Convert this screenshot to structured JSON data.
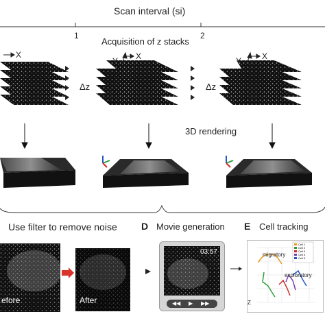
{
  "timeline": {
    "title": "Scan interval (si)",
    "tick1": "1",
    "tick2": "2"
  },
  "stacks": {
    "title": "Acquisition of z stacks",
    "axis_x": "X",
    "axis_y": "Y",
    "delta_z": "Δz"
  },
  "rendering": {
    "title": "3D rendering"
  },
  "panels": {
    "c_title": "Use filter to remove noise",
    "c_before": "efore",
    "c_after": "After",
    "d_letter": "D",
    "d_title": "Movie generation",
    "d_timestamp": "03:57",
    "e_letter": "E",
    "e_title": "Cell tracking",
    "e_migratory": "migratory",
    "e_exploratory": "exploratory",
    "e_axis_z": "Z",
    "e_legend": [
      "Cell 1",
      "Cell 2",
      "Cell 3",
      "Cell 4",
      "Cell 5"
    ]
  },
  "colors": {
    "arrow_red": "#d9342b",
    "track_orange": "#e69a1c",
    "track_green": "#2f9e3a",
    "track_red": "#cc2a2a",
    "track_purple": "#7a3fb3",
    "track_blue": "#2456c8"
  }
}
